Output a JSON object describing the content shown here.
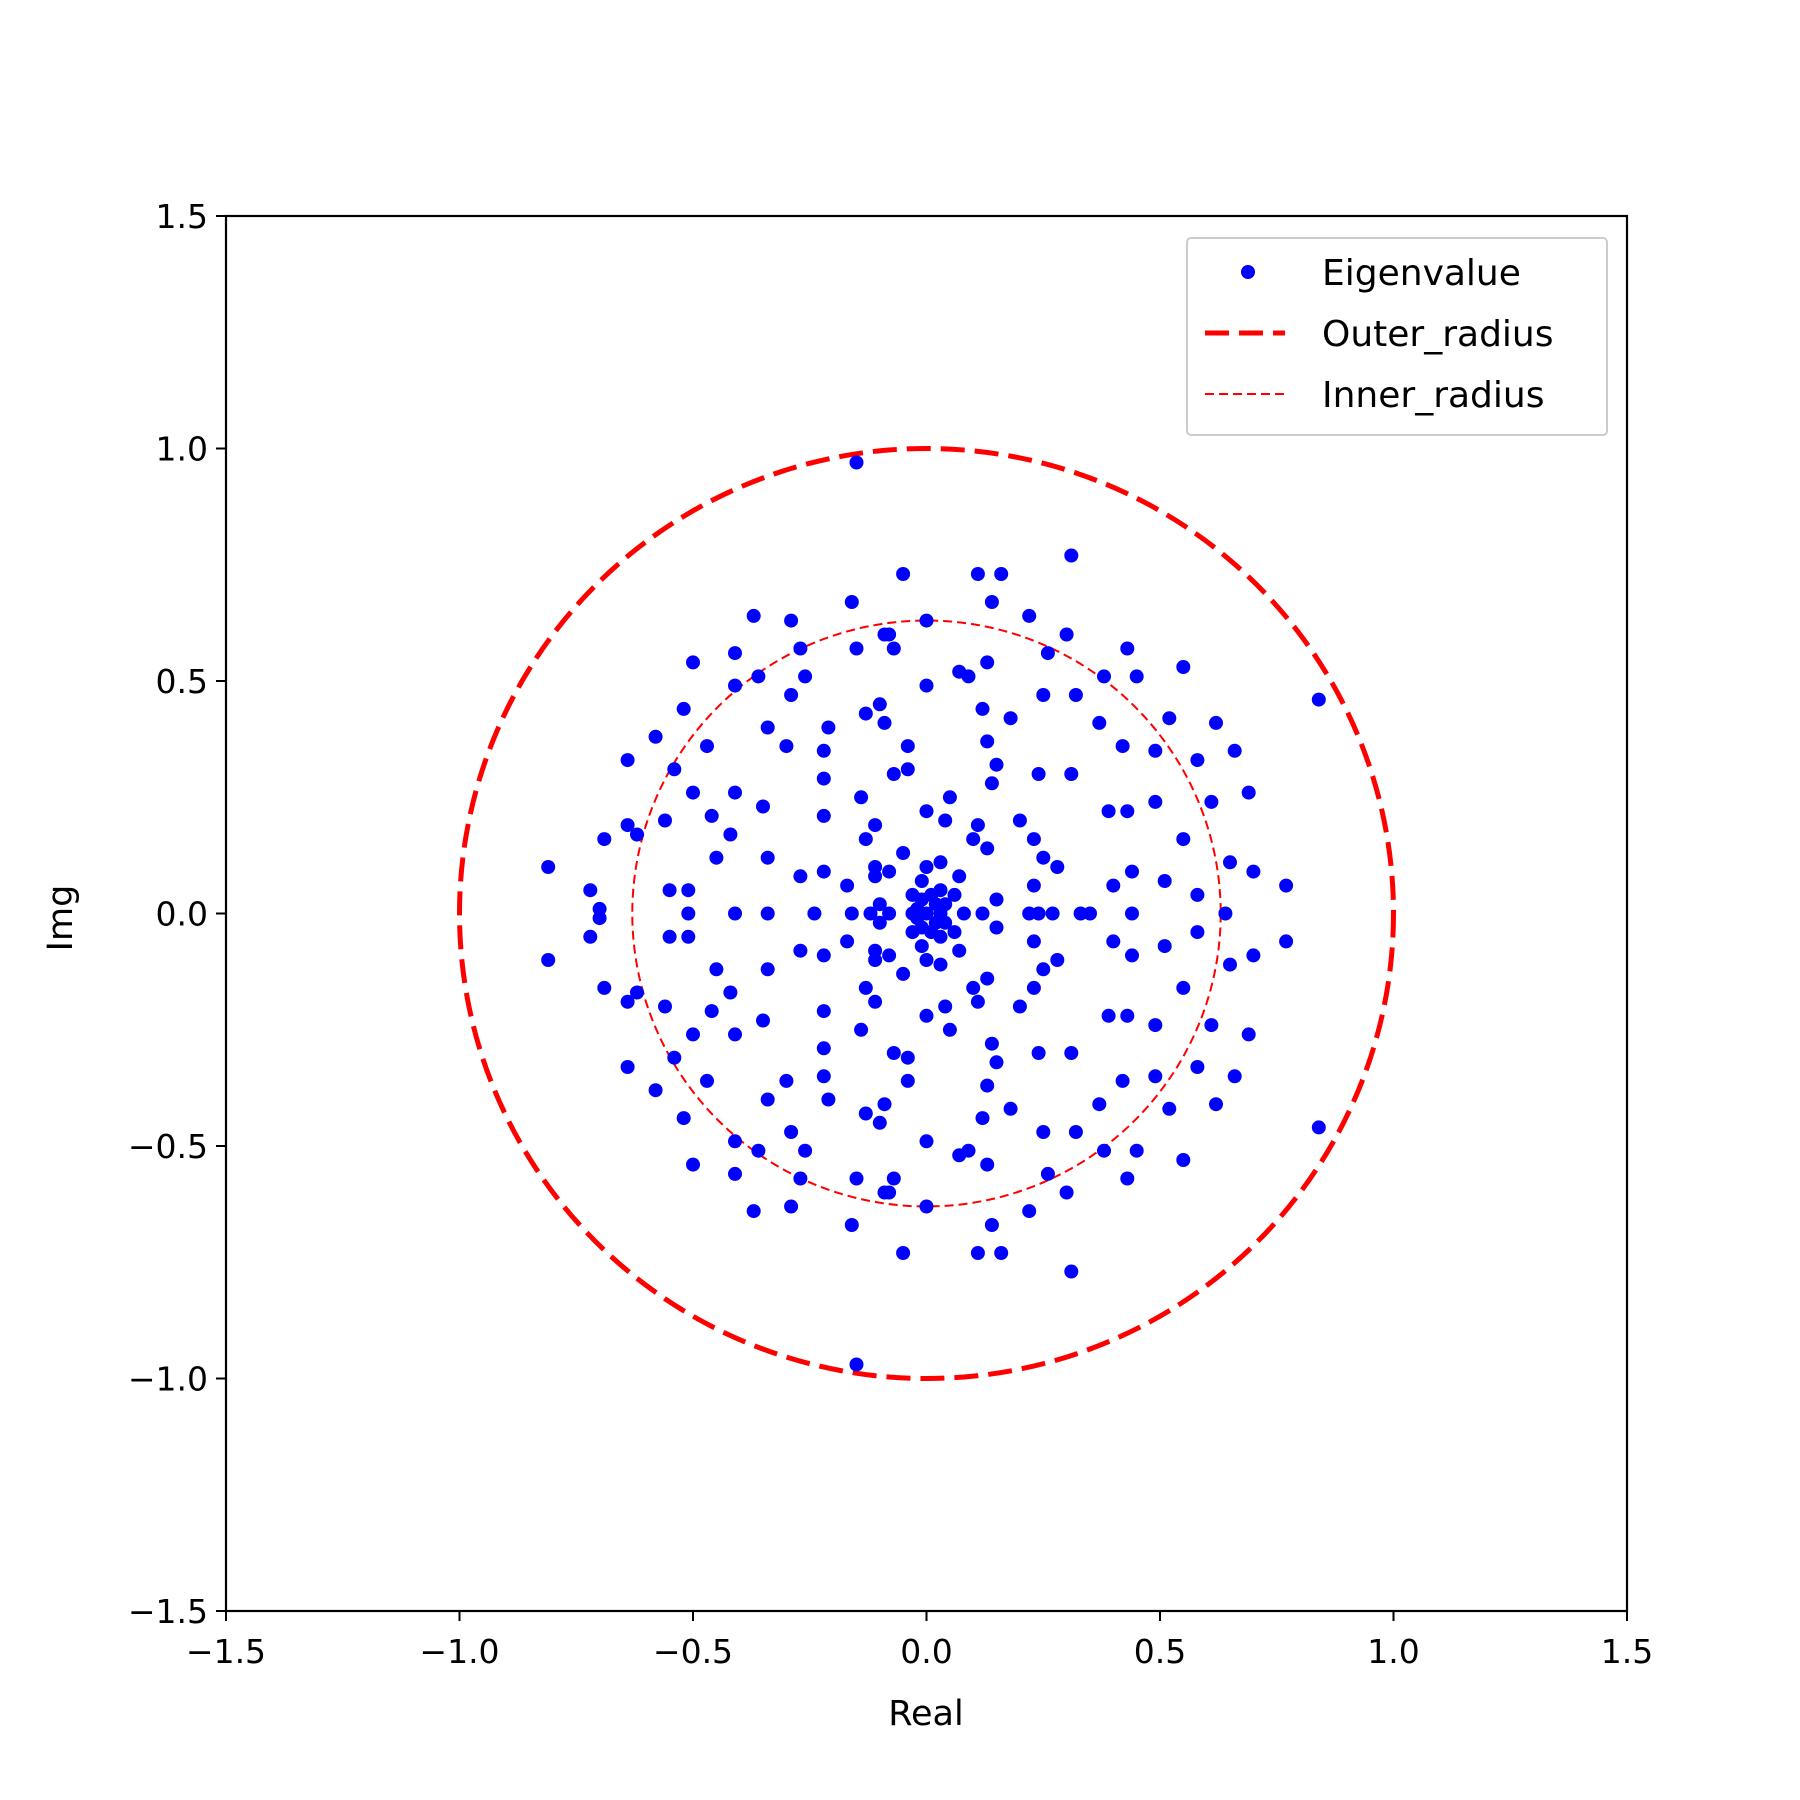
{
  "chart_data": {
    "type": "scatter",
    "xlabel": "Real",
    "ylabel": "Img",
    "xlim": [
      -1.5,
      1.5
    ],
    "ylim": [
      -1.5,
      1.5
    ],
    "xticks": [
      -1.5,
      -1.0,
      -0.5,
      0.0,
      0.5,
      1.0,
      1.5
    ],
    "yticks": [
      -1.5,
      -1.0,
      -0.5,
      0.0,
      0.5,
      1.0,
      1.5
    ],
    "xtick_labels": [
      "−1.5",
      "−1.0",
      "−0.5",
      "0.0",
      "0.5",
      "1.0",
      "1.5"
    ],
    "ytick_labels": [
      "−1.5",
      "−1.0",
      "−0.5",
      "0.0",
      "0.5",
      "1.0",
      "1.5"
    ],
    "grid": false,
    "legend_position": "top-right",
    "colors": {
      "points": "#0000ff",
      "circles": "#ff0000"
    },
    "series": [
      {
        "name": "Eigenvalue",
        "kind": "points",
        "points": [
          [
            -0.15,
            0.97
          ],
          [
            -0.15,
            -0.97
          ],
          [
            0.84,
            0.46
          ],
          [
            0.84,
            -0.46
          ],
          [
            -0.81,
            0.1
          ],
          [
            -0.81,
            -0.1
          ],
          [
            0.77,
            0.06
          ],
          [
            0.77,
            -0.06
          ],
          [
            -0.72,
            0.05
          ],
          [
            -0.72,
            -0.05
          ],
          [
            -0.7,
            0.01
          ],
          [
            -0.7,
            -0.01
          ],
          [
            -0.69,
            0.16
          ],
          [
            -0.69,
            -0.16
          ],
          [
            0.7,
            0.09
          ],
          [
            0.7,
            -0.09
          ],
          [
            0.69,
            0.26
          ],
          [
            0.69,
            -0.26
          ],
          [
            0.66,
            0.35
          ],
          [
            0.66,
            -0.35
          ],
          [
            0.65,
            0.11
          ],
          [
            0.65,
            -0.11
          ],
          [
            0.64,
            0.0
          ],
          [
            0.62,
            0.41
          ],
          [
            0.62,
            -0.41
          ],
          [
            0.61,
            0.24
          ],
          [
            0.61,
            -0.24
          ],
          [
            0.58,
            0.33
          ],
          [
            0.58,
            -0.33
          ],
          [
            0.58,
            0.04
          ],
          [
            0.58,
            -0.04
          ],
          [
            0.55,
            0.53
          ],
          [
            0.55,
            -0.53
          ],
          [
            0.55,
            0.16
          ],
          [
            0.55,
            -0.16
          ],
          [
            0.52,
            0.42
          ],
          [
            0.52,
            -0.42
          ],
          [
            0.51,
            0.07
          ],
          [
            0.51,
            -0.07
          ],
          [
            0.49,
            0.35
          ],
          [
            0.49,
            -0.35
          ],
          [
            0.49,
            0.24
          ],
          [
            0.49,
            -0.24
          ],
          [
            0.45,
            0.51
          ],
          [
            0.45,
            -0.51
          ],
          [
            0.43,
            0.57
          ],
          [
            0.43,
            -0.57
          ],
          [
            0.44,
            0.09
          ],
          [
            0.44,
            -0.09
          ],
          [
            0.44,
            0.0
          ],
          [
            0.42,
            0.36
          ],
          [
            0.42,
            -0.36
          ],
          [
            0.43,
            0.22
          ],
          [
            0.43,
            -0.22
          ],
          [
            0.4,
            0.06
          ],
          [
            0.4,
            -0.06
          ],
          [
            0.39,
            0.22
          ],
          [
            0.39,
            -0.22
          ],
          [
            0.38,
            0.51
          ],
          [
            0.38,
            -0.51
          ],
          [
            0.37,
            0.41
          ],
          [
            0.37,
            -0.41
          ],
          [
            0.35,
            0.0
          ],
          [
            0.33,
            0.0
          ],
          [
            0.31,
            0.77
          ],
          [
            0.31,
            -0.77
          ],
          [
            0.3,
            0.6
          ],
          [
            0.3,
            -0.6
          ],
          [
            0.31,
            0.3
          ],
          [
            0.31,
            -0.3
          ],
          [
            0.32,
            0.47
          ],
          [
            0.32,
            -0.47
          ],
          [
            0.28,
            0.1
          ],
          [
            0.28,
            -0.1
          ],
          [
            0.27,
            0.0
          ],
          [
            0.26,
            0.56
          ],
          [
            0.26,
            -0.56
          ],
          [
            0.25,
            0.47
          ],
          [
            0.25,
            -0.47
          ],
          [
            0.24,
            0.3
          ],
          [
            0.24,
            -0.3
          ],
          [
            0.25,
            0.12
          ],
          [
            0.25,
            -0.12
          ],
          [
            0.23,
            0.16
          ],
          [
            0.23,
            -0.16
          ],
          [
            0.23,
            0.06
          ],
          [
            0.23,
            -0.06
          ],
          [
            0.22,
            0.0
          ],
          [
            0.24,
            0.0
          ],
          [
            0.22,
            0.64
          ],
          [
            0.22,
            -0.64
          ],
          [
            0.2,
            0.2
          ],
          [
            0.2,
            -0.2
          ],
          [
            0.18,
            0.42
          ],
          [
            0.18,
            -0.42
          ],
          [
            0.16,
            0.73
          ],
          [
            0.16,
            -0.73
          ],
          [
            0.15,
            0.32
          ],
          [
            0.15,
            -0.32
          ],
          [
            0.14,
            0.67
          ],
          [
            0.14,
            -0.67
          ],
          [
            0.14,
            0.28
          ],
          [
            0.14,
            -0.28
          ],
          [
            0.15,
            0.03
          ],
          [
            0.15,
            -0.03
          ],
          [
            0.13,
            0.54
          ],
          [
            0.13,
            -0.54
          ],
          [
            0.13,
            0.37
          ],
          [
            0.13,
            -0.37
          ],
          [
            0.13,
            0.14
          ],
          [
            0.13,
            -0.14
          ],
          [
            0.12,
            0.44
          ],
          [
            0.12,
            -0.44
          ],
          [
            0.11,
            0.73
          ],
          [
            0.11,
            -0.73
          ],
          [
            0.11,
            0.19
          ],
          [
            0.11,
            -0.19
          ],
          [
            0.1,
            0.16
          ],
          [
            0.1,
            -0.16
          ],
          [
            0.12,
            0.0
          ],
          [
            0.09,
            0.51
          ],
          [
            0.09,
            -0.51
          ],
          [
            0.07,
            0.52
          ],
          [
            0.07,
            -0.52
          ],
          [
            0.07,
            0.08
          ],
          [
            0.07,
            -0.08
          ],
          [
            0.08,
            0.0
          ],
          [
            0.05,
            0.25
          ],
          [
            0.05,
            -0.25
          ],
          [
            0.04,
            0.2
          ],
          [
            0.04,
            -0.2
          ],
          [
            0.06,
            0.04
          ],
          [
            0.06,
            -0.04
          ],
          [
            0.03,
            0.11
          ],
          [
            0.03,
            -0.11
          ],
          [
            0.0,
            0.63
          ],
          [
            0.0,
            -0.63
          ],
          [
            0.0,
            0.49
          ],
          [
            0.0,
            -0.49
          ],
          [
            0.0,
            0.22
          ],
          [
            0.0,
            -0.22
          ],
          [
            0.0,
            0.1
          ],
          [
            0.0,
            -0.1
          ],
          [
            -0.01,
            0.07
          ],
          [
            -0.01,
            -0.07
          ],
          [
            -0.02,
            0.01
          ],
          [
            -0.02,
            -0.01
          ],
          [
            0.02,
            0.02
          ],
          [
            0.02,
            -0.02
          ],
          [
            -0.01,
            0.03
          ],
          [
            -0.01,
            -0.03
          ],
          [
            0.01,
            0.04
          ],
          [
            0.01,
            -0.04
          ],
          [
            0.03,
            0.0
          ],
          [
            -0.03,
            0.0
          ],
          [
            0.0,
            0.0
          ],
          [
            0.04,
            0.02
          ],
          [
            0.04,
            -0.02
          ],
          [
            -0.03,
            0.04
          ],
          [
            -0.03,
            -0.04
          ],
          [
            0.03,
            0.05
          ],
          [
            0.03,
            -0.05
          ],
          [
            -0.04,
            0.31
          ],
          [
            -0.04,
            -0.31
          ],
          [
            -0.04,
            0.36
          ],
          [
            -0.04,
            -0.36
          ],
          [
            -0.05,
            0.73
          ],
          [
            -0.05,
            -0.73
          ],
          [
            -0.05,
            0.13
          ],
          [
            -0.05,
            -0.13
          ],
          [
            -0.07,
            0.3
          ],
          [
            -0.07,
            -0.3
          ],
          [
            -0.07,
            0.57
          ],
          [
            -0.07,
            -0.57
          ],
          [
            -0.08,
            0.6
          ],
          [
            -0.08,
            -0.6
          ],
          [
            -0.08,
            0.0
          ],
          [
            -0.08,
            0.09
          ],
          [
            -0.08,
            -0.09
          ],
          [
            -0.09,
            0.41
          ],
          [
            -0.09,
            -0.41
          ],
          [
            -0.09,
            0.6
          ],
          [
            -0.09,
            -0.6
          ],
          [
            -0.1,
            0.45
          ],
          [
            -0.1,
            -0.45
          ],
          [
            -0.1,
            0.02
          ],
          [
            -0.1,
            -0.02
          ],
          [
            -0.11,
            0.19
          ],
          [
            -0.11,
            -0.19
          ],
          [
            -0.11,
            0.1
          ],
          [
            -0.11,
            -0.1
          ],
          [
            -0.11,
            0.08
          ],
          [
            -0.11,
            -0.08
          ],
          [
            -0.12,
            0.0
          ],
          [
            -0.13,
            0.43
          ],
          [
            -0.13,
            -0.43
          ],
          [
            -0.13,
            0.16
          ],
          [
            -0.13,
            -0.16
          ],
          [
            -0.14,
            0.25
          ],
          [
            -0.14,
            -0.25
          ],
          [
            -0.15,
            0.57
          ],
          [
            -0.15,
            -0.57
          ],
          [
            -0.16,
            0.67
          ],
          [
            -0.16,
            -0.67
          ],
          [
            -0.16,
            0.0
          ],
          [
            -0.17,
            0.06
          ],
          [
            -0.17,
            -0.06
          ],
          [
            -0.21,
            0.4
          ],
          [
            -0.21,
            -0.4
          ],
          [
            -0.22,
            0.35
          ],
          [
            -0.22,
            -0.35
          ],
          [
            -0.22,
            0.29
          ],
          [
            -0.22,
            -0.29
          ],
          [
            -0.22,
            0.21
          ],
          [
            -0.22,
            -0.21
          ],
          [
            -0.22,
            0.09
          ],
          [
            -0.22,
            -0.09
          ],
          [
            -0.24,
            0.0
          ],
          [
            -0.26,
            0.51
          ],
          [
            -0.26,
            -0.51
          ],
          [
            -0.27,
            0.57
          ],
          [
            -0.27,
            -0.57
          ],
          [
            -0.27,
            0.08
          ],
          [
            -0.27,
            -0.08
          ],
          [
            -0.29,
            0.63
          ],
          [
            -0.29,
            -0.63
          ],
          [
            -0.29,
            0.47
          ],
          [
            -0.29,
            -0.47
          ],
          [
            -0.3,
            0.36
          ],
          [
            -0.3,
            -0.36
          ],
          [
            -0.34,
            0.12
          ],
          [
            -0.34,
            -0.12
          ],
          [
            -0.34,
            0.4
          ],
          [
            -0.34,
            -0.4
          ],
          [
            -0.34,
            0.0
          ],
          [
            -0.35,
            0.23
          ],
          [
            -0.35,
            -0.23
          ],
          [
            -0.36,
            0.51
          ],
          [
            -0.36,
            -0.51
          ],
          [
            -0.37,
            0.64
          ],
          [
            -0.37,
            -0.64
          ],
          [
            -0.41,
            0.49
          ],
          [
            -0.41,
            -0.49
          ],
          [
            -0.41,
            0.26
          ],
          [
            -0.41,
            -0.26
          ],
          [
            -0.41,
            0.56
          ],
          [
            -0.41,
            -0.56
          ],
          [
            -0.41,
            0.0
          ],
          [
            -0.42,
            0.17
          ],
          [
            -0.42,
            -0.17
          ],
          [
            -0.45,
            0.12
          ],
          [
            -0.45,
            -0.12
          ],
          [
            -0.46,
            0.21
          ],
          [
            -0.46,
            -0.21
          ],
          [
            -0.47,
            0.36
          ],
          [
            -0.47,
            -0.36
          ],
          [
            -0.5,
            0.54
          ],
          [
            -0.5,
            -0.54
          ],
          [
            -0.5,
            0.26
          ],
          [
            -0.5,
            -0.26
          ],
          [
            -0.51,
            0.05
          ],
          [
            -0.51,
            -0.05
          ],
          [
            -0.51,
            0.0
          ],
          [
            -0.52,
            0.44
          ],
          [
            -0.52,
            -0.44
          ],
          [
            -0.54,
            0.31
          ],
          [
            -0.54,
            -0.31
          ],
          [
            -0.55,
            0.05
          ],
          [
            -0.55,
            -0.05
          ],
          [
            -0.56,
            0.2
          ],
          [
            -0.56,
            -0.2
          ],
          [
            -0.58,
            0.38
          ],
          [
            -0.58,
            -0.38
          ],
          [
            -0.62,
            0.17
          ],
          [
            -0.62,
            -0.17
          ],
          [
            -0.64,
            0.33
          ],
          [
            -0.64,
            -0.33
          ],
          [
            -0.64,
            0.19
          ],
          [
            -0.64,
            -0.19
          ]
        ]
      },
      {
        "name": "Outer_radius",
        "kind": "circle",
        "radius": 1.0,
        "line_style": "dashed-thick"
      },
      {
        "name": "Inner_radius",
        "kind": "circle",
        "radius": 0.63,
        "line_style": "dashed-thin"
      }
    ]
  }
}
